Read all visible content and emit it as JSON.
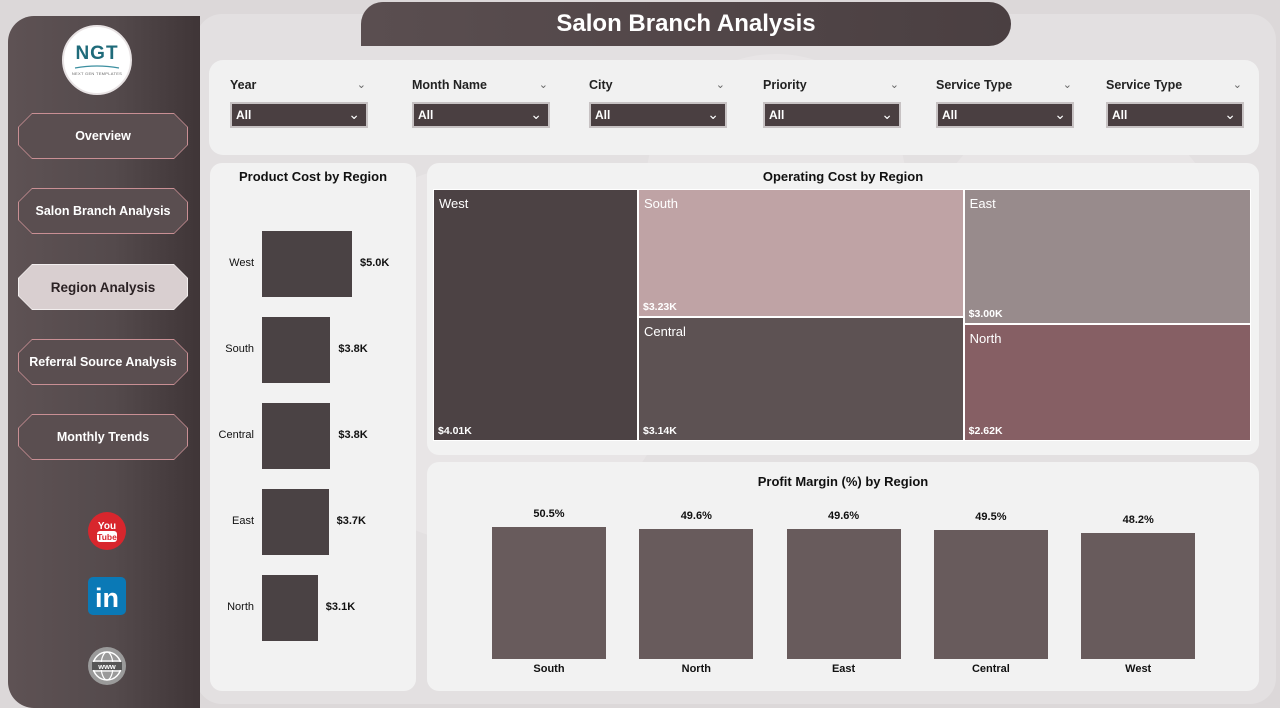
{
  "header": {
    "title": "Salon Branch Analysis"
  },
  "logo": {
    "text": "NGT",
    "subtext": "NEXT GEN TEMPLATES"
  },
  "nav": {
    "items": [
      {
        "label": "Overview",
        "active": false
      },
      {
        "label": "Salon Branch Analysis",
        "active": false
      },
      {
        "label": "Region Analysis",
        "active": true
      },
      {
        "label": "Referral Source Analysis",
        "active": false
      },
      {
        "label": "Monthly Trends",
        "active": false
      }
    ]
  },
  "social": {
    "youtube": "You Tube",
    "linkedin": "in",
    "web": "www"
  },
  "filters": [
    {
      "label": "Year",
      "value": "All"
    },
    {
      "label": "Month Name",
      "value": "All"
    },
    {
      "label": "City",
      "value": "All"
    },
    {
      "label": "Priority",
      "value": "All"
    },
    {
      "label": "Service Type",
      "value": "All"
    },
    {
      "label": "Service Type",
      "value": "All"
    }
  ],
  "colors": {
    "bar": "#4a4244",
    "vbar": "#685b5c",
    "treemap_west": "#4c4244",
    "treemap_south": "#bfa3a5",
    "treemap_central": "#5d5253",
    "treemap_east": "#988b8c",
    "treemap_north": "#865f64"
  },
  "chart_data": [
    {
      "type": "bar",
      "orientation": "horizontal",
      "title": "Product Cost by Region",
      "categories": [
        "West",
        "South",
        "Central",
        "East",
        "North"
      ],
      "values": [
        5.0,
        3.8,
        3.8,
        3.7,
        3.1
      ],
      "labels": [
        "$5.0K",
        "$3.8K",
        "$3.8K",
        "$3.7K",
        "$3.1K"
      ],
      "unit": "K"
    },
    {
      "type": "treemap",
      "title": "Operating Cost by Region",
      "categories": [
        "West",
        "South",
        "Central",
        "East",
        "North"
      ],
      "values": [
        4.01,
        3.23,
        3.14,
        3.0,
        2.62
      ],
      "labels": [
        "$4.01K",
        "$3.23K",
        "$3.14K",
        "$3.00K",
        "$2.62K"
      ]
    },
    {
      "type": "bar",
      "title": "Profit Margin (%) by Region",
      "categories": [
        "South",
        "North",
        "East",
        "Central",
        "West"
      ],
      "values": [
        50.5,
        49.6,
        49.6,
        49.5,
        48.2
      ],
      "labels": [
        "50.5%",
        "49.6%",
        "49.6%",
        "49.5%",
        "48.2%"
      ]
    }
  ]
}
